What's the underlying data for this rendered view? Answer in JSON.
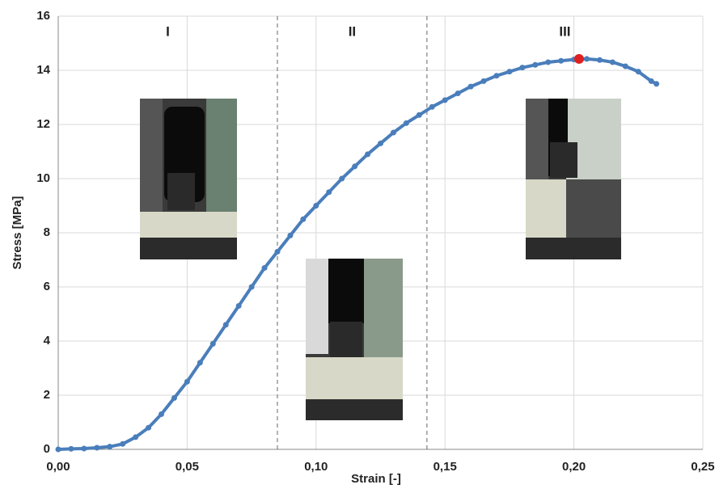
{
  "chart_data": {
    "type": "scatter",
    "x_label": "Strain [-]",
    "y_label": "Stress [MPa]",
    "xlim": [
      0,
      0.25
    ],
    "ylim": [
      0,
      16
    ],
    "xticks": [
      {
        "value": 0,
        "label": "0,00"
      },
      {
        "value": 0.05,
        "label": "0,05"
      },
      {
        "value": 0.1,
        "label": "0,10"
      },
      {
        "value": 0.15,
        "label": "0,15"
      },
      {
        "value": 0.2,
        "label": "0,20"
      },
      {
        "value": 0.25,
        "label": "0,25"
      }
    ],
    "yticks": [
      0,
      2,
      4,
      6,
      8,
      10,
      12,
      14,
      16
    ],
    "grid": true,
    "region_boundaries": [
      0.085,
      0.143
    ],
    "region_labels": [
      "I",
      "II",
      "III"
    ],
    "series": [
      {
        "color": "#4a7ebb",
        "x": [
          0,
          0.005,
          0.01,
          0.015,
          0.02,
          0.025,
          0.03,
          0.035,
          0.04,
          0.045,
          0.05,
          0.055,
          0.06,
          0.065,
          0.07,
          0.075,
          0.08,
          0.085,
          0.09,
          0.095,
          0.1,
          0.105,
          0.11,
          0.115,
          0.12,
          0.125,
          0.13,
          0.135,
          0.14,
          0.145,
          0.15,
          0.155,
          0.16,
          0.165,
          0.17,
          0.175,
          0.18,
          0.185,
          0.19,
          0.195,
          0.2,
          0.205,
          0.21,
          0.215,
          0.22,
          0.225,
          0.23,
          0.232
        ],
        "values": [
          0,
          0.02,
          0.03,
          0.06,
          0.1,
          0.2,
          0.45,
          0.8,
          1.3,
          1.9,
          2.5,
          3.2,
          3.9,
          4.6,
          5.3,
          6.0,
          6.7,
          7.3,
          7.9,
          8.5,
          9.0,
          9.5,
          10.0,
          10.45,
          10.9,
          11.3,
          11.7,
          12.05,
          12.35,
          12.65,
          12.9,
          13.15,
          13.4,
          13.6,
          13.8,
          13.95,
          14.1,
          14.2,
          14.3,
          14.35,
          14.4,
          14.42,
          14.38,
          14.3,
          14.15,
          13.95,
          13.6,
          13.5
        ]
      },
      {
        "color": "#e02020",
        "x": [
          0.202
        ],
        "values": [
          14.42
        ]
      }
    ]
  }
}
